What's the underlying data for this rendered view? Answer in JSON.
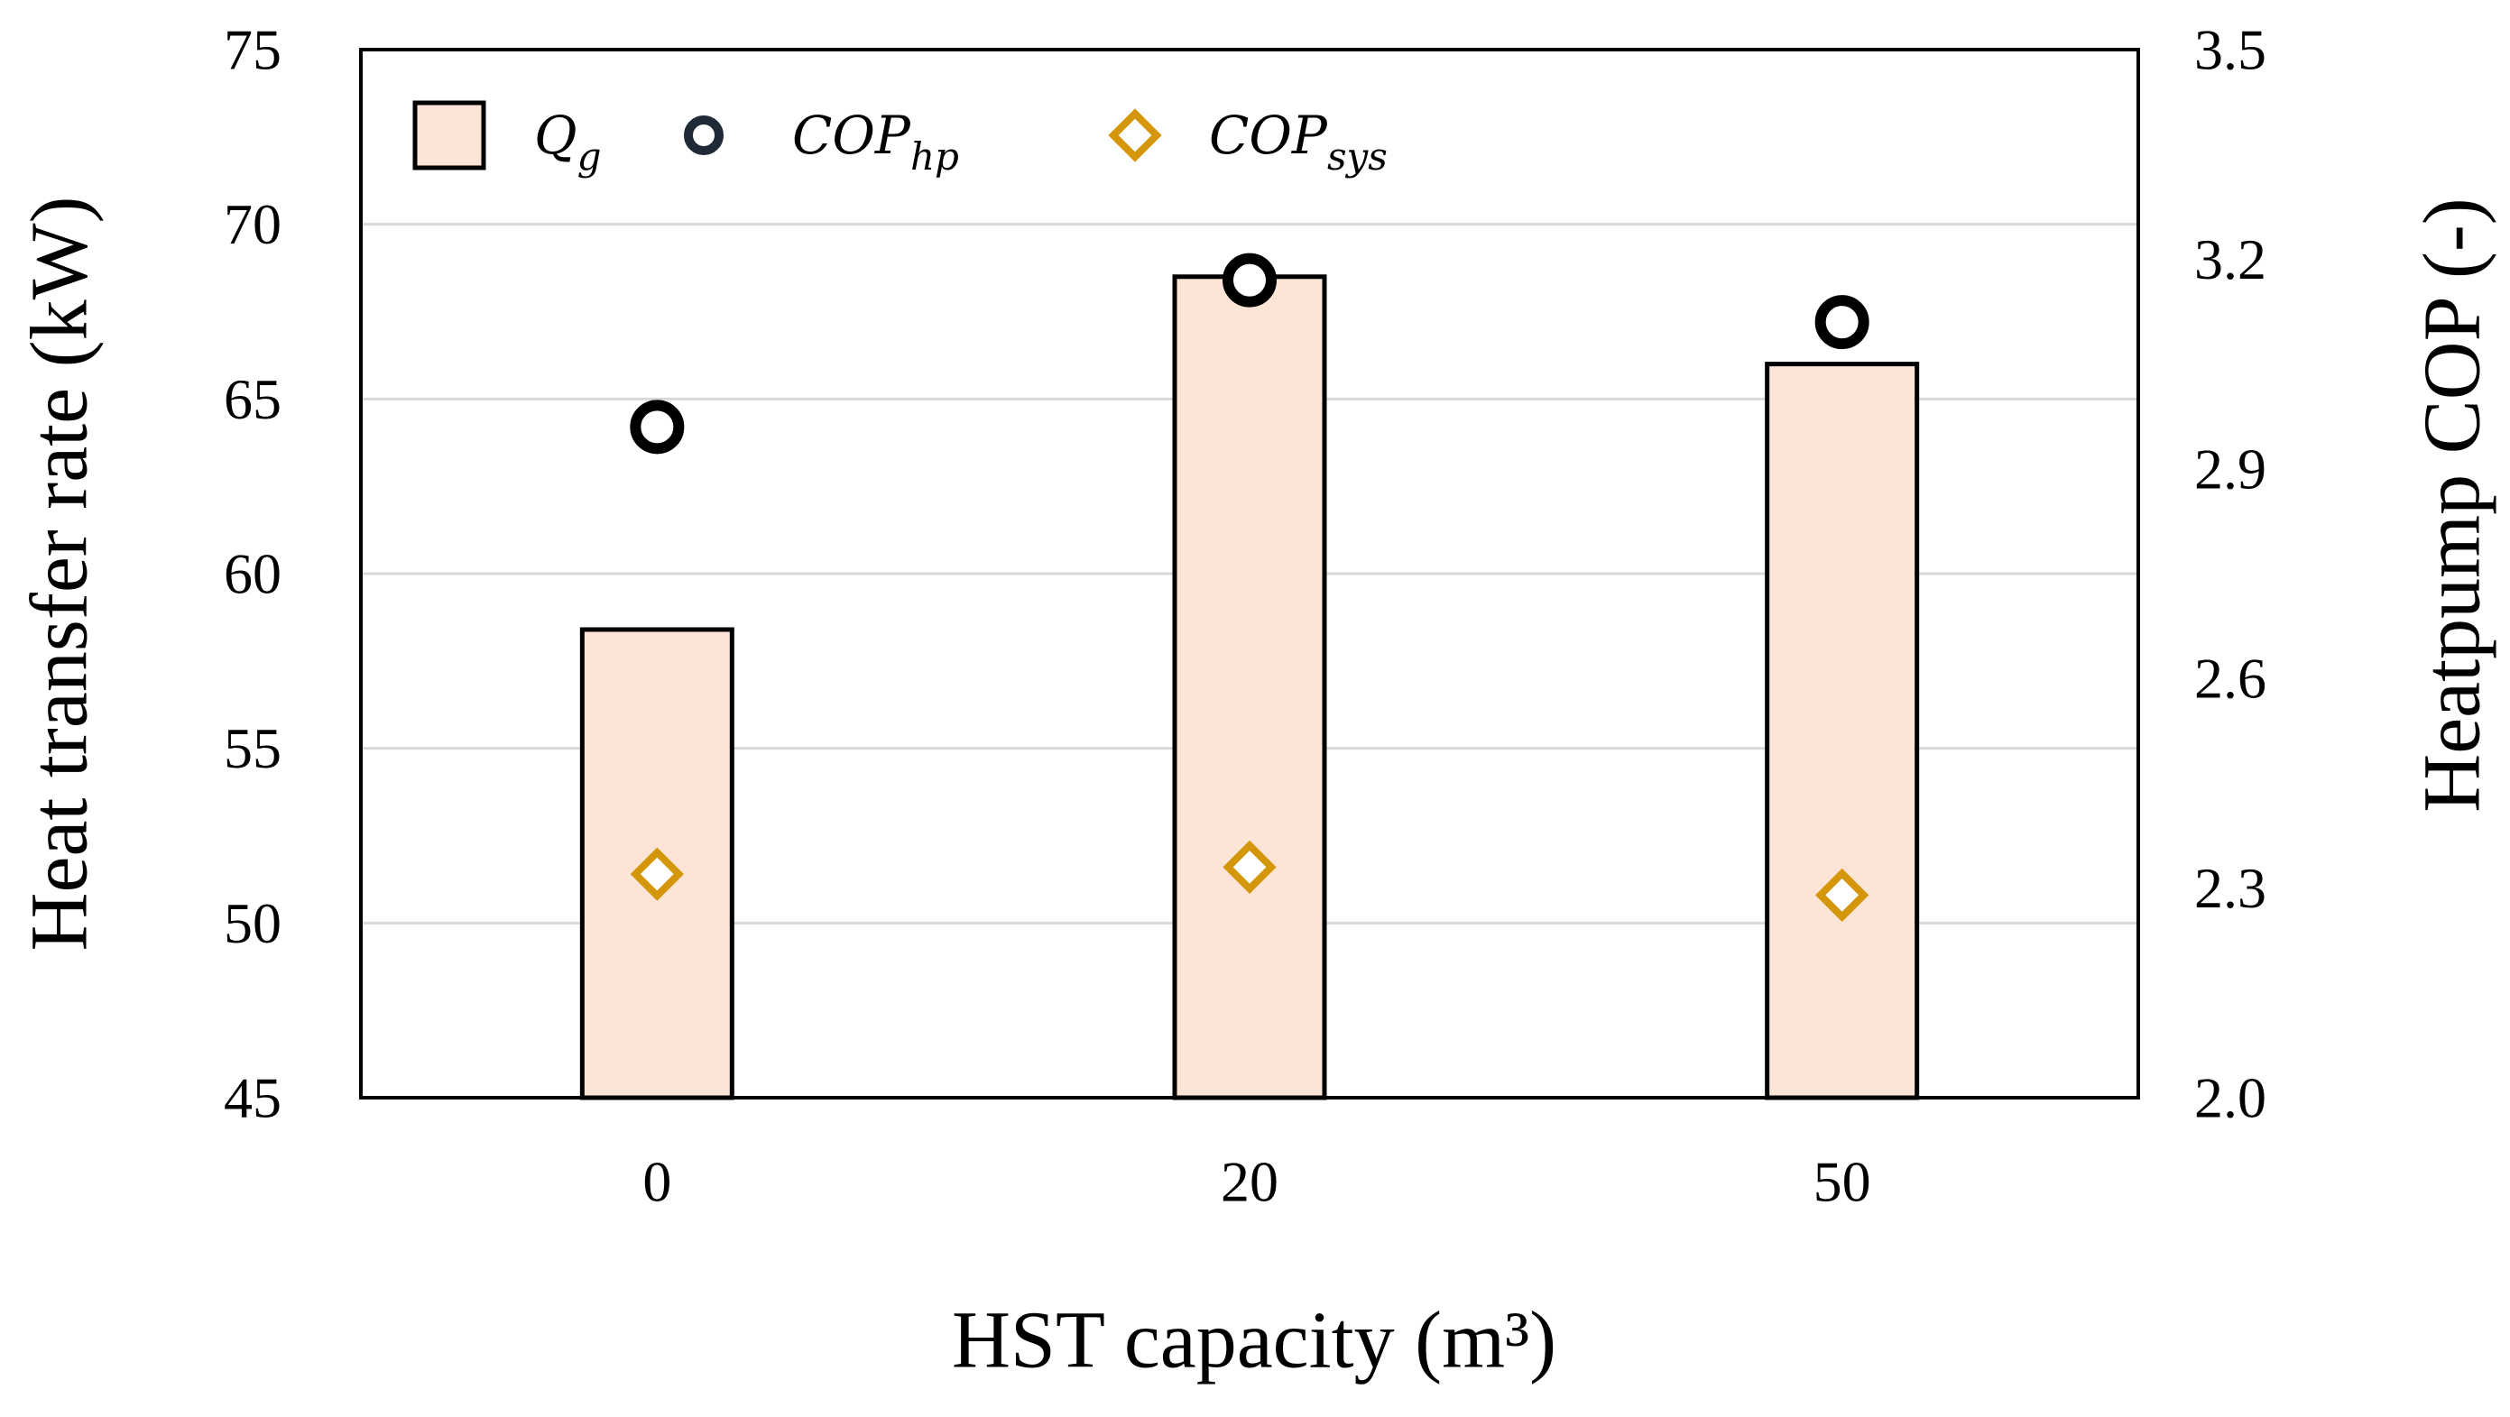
{
  "chart_data": {
    "type": "bar",
    "title": "",
    "categories": [
      "0",
      "20",
      "50"
    ],
    "xlabel": "HST capacity (m³)",
    "ylabel": "Heat transfer rate (kW)",
    "y2label": "Heatpump COP (-)",
    "ylim": [
      45,
      75
    ],
    "yticks": [
      "45",
      "50",
      "55",
      "60",
      "65",
      "70",
      "75"
    ],
    "y2lim": [
      2.0,
      3.5
    ],
    "y2ticks": [
      "2.0",
      "2.3",
      "2.6",
      "2.9",
      "3.2",
      "3.5"
    ],
    "grid": true,
    "legend_position": "top-left",
    "series": [
      {
        "name": "Q_g",
        "label_main": "Q",
        "label_sub": "g",
        "axis": "left",
        "kind": "bar",
        "values": [
          58.4,
          68.5,
          66.0
        ],
        "fill": "#FCE4D6",
        "stroke": "#000000"
      },
      {
        "name": "COP_hp",
        "label_main": "COP",
        "label_sub": "hp",
        "axis": "right",
        "kind": "circle",
        "values": [
          2.96,
          3.17,
          3.11
        ],
        "stroke": "#000000",
        "legend_stroke": "#1F2A36"
      },
      {
        "name": "COP_sys",
        "label_main": "COP",
        "label_sub": "sys",
        "axis": "right",
        "kind": "diamond",
        "values": [
          2.32,
          2.33,
          2.29
        ],
        "stroke": "#D4960A"
      }
    ]
  }
}
